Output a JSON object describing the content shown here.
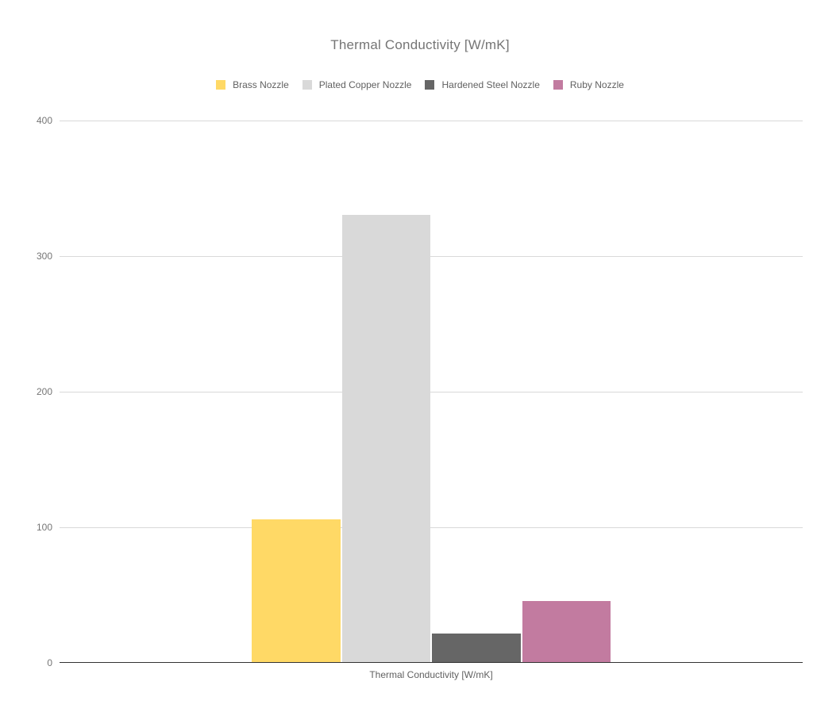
{
  "chart_data": {
    "type": "bar",
    "title": "Thermal Conductivity [W/mK]",
    "xlabel": "Thermal Conductivity [W/mK]",
    "ylabel": "",
    "categories": [
      "Thermal Conductivity [W/mK]"
    ],
    "series": [
      {
        "name": "Brass Nozzle",
        "values": [
          105
        ],
        "color": "#FFD966"
      },
      {
        "name": "Plated Copper Nozzle",
        "values": [
          330
        ],
        "color": "#D9D9D9"
      },
      {
        "name": "Hardened Steel Nozzle",
        "values": [
          21
        ],
        "color": "#666666"
      },
      {
        "name": "Ruby Nozzle",
        "values": [
          45
        ],
        "color": "#C27BA0"
      }
    ],
    "ylim": [
      0,
      400
    ],
    "yticks": [
      0,
      100,
      200,
      300,
      400
    ],
    "grid": true,
    "legend_position": "top",
    "colors": {
      "background": "#FFFFFF",
      "gridline": "#D9D9D9",
      "baseline": "#333333",
      "title_text": "#757575",
      "tick_text": "#757575",
      "legend_text": "#616161",
      "xlabel_text": "#616161"
    }
  }
}
